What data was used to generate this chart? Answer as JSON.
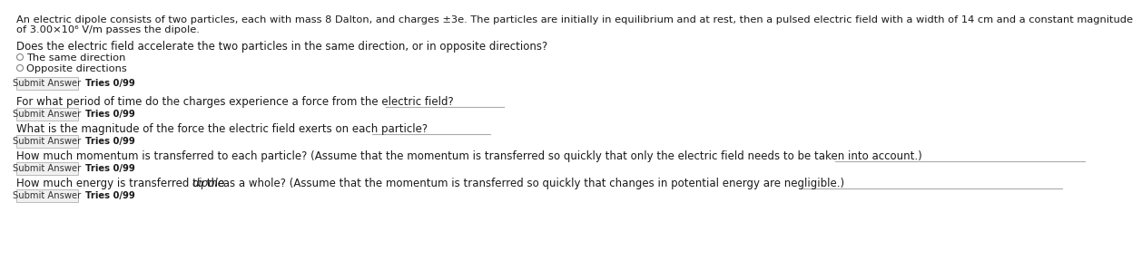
{
  "bg_color": "#ffffff",
  "text_color": "#1a1a1a",
  "gray_text": "#555555",
  "intro_line1": "An electric dipole consists of two particles, each with mass 8 Dalton, and charges ±3e. The particles are initially in equilibrium and at rest, then a pulsed electric field with a width of 14 cm and a constant magnitude",
  "intro_line2": "of 3.00×10⁶ V/m passes the dipole.",
  "q1_label": "Does the electric field accelerate the two particles in the same direction, or in opposite directions?",
  "q1_opt1": "The same direction",
  "q1_opt2": "Opposite directions",
  "q2_label": "For what period of time do the charges experience a force from the electric field?",
  "q3_label": "What is the magnitude of the force the electric field exerts on each particle?",
  "q4_label": "How much momentum is transferred to each particle? (Assume that the momentum is transferred so quickly that only the electric field needs to be taken into account.)",
  "q5_label_pre": "How much energy is transferred to the ",
  "q5_label_italic": "dipole",
  "q5_label_post": " as a whole? (Assume that the momentum is transferred so quickly that changes in potential energy are negligible.)",
  "submit_btn_text": "Submit Answer",
  "tries_text": "Tries 0/99",
  "answer_line_color": "#aaaaaa",
  "submit_btn_color": "#f0f0f0",
  "submit_btn_border": "#bbbbbb",
  "submit_btn_text_color": "#333333",
  "radio_circle_color": "#888888",
  "font_size_intro": 8.2,
  "font_size_q": 8.5,
  "font_size_opt": 8.2,
  "font_size_submit": 7.2,
  "figsize": [
    12.0,
    2.89
  ]
}
